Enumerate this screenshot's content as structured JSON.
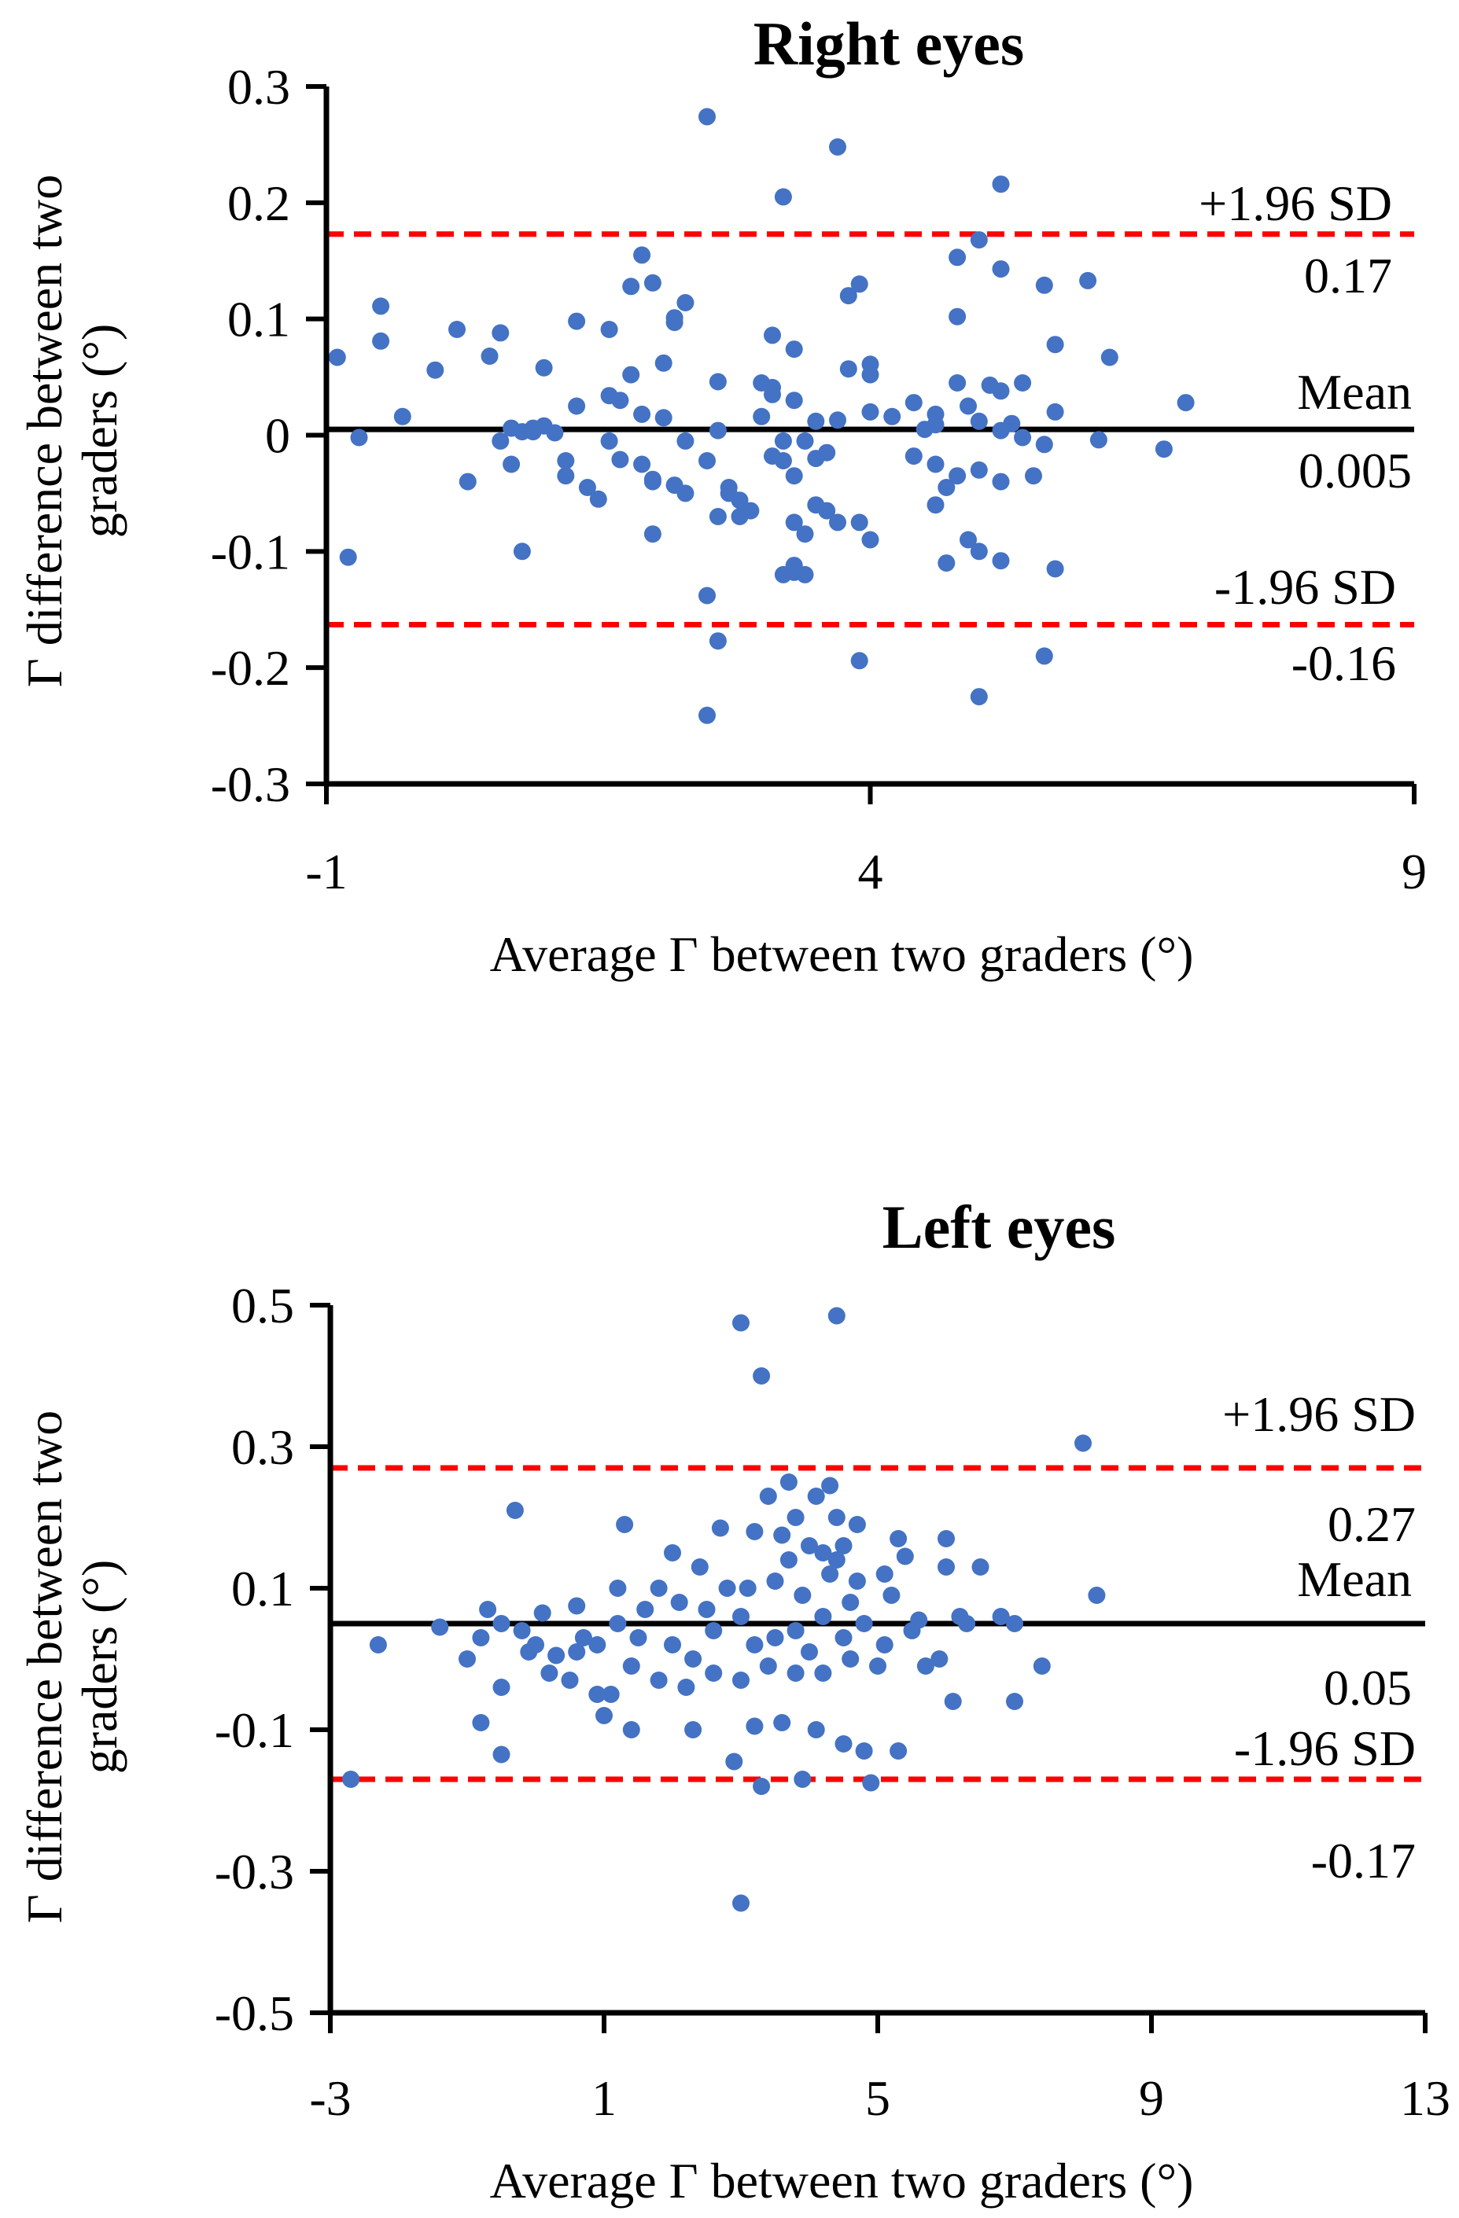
{
  "chart_data": [
    {
      "type": "scatter",
      "title": "Right eyes",
      "xlabel": "Average Γ between two graders (°)",
      "ylabel": "Γ difference between two graders  (°)",
      "xlim": [
        -1,
        9
      ],
      "ylim": [
        -0.3,
        0.3
      ],
      "xticks": [
        -1,
        4,
        9
      ],
      "yticks": [
        -0.3,
        -0.2,
        -0.1,
        0,
        0.1,
        0.2,
        0.3
      ],
      "xtick_labels": [
        "-1",
        "4",
        "9"
      ],
      "ytick_labels": [
        "-0.3",
        "-0.2",
        "-0.1",
        "0",
        "0.1",
        "0.2",
        "0.3"
      ],
      "reference_lines": [
        {
          "name": "upper-limit",
          "label": "+1.96 SD",
          "value_label": "0.17",
          "y": 0.173,
          "style": "dashed",
          "color": "#ff0000"
        },
        {
          "name": "mean",
          "label": "Mean",
          "value_label": "0.005",
          "y": 0.005,
          "style": "solid",
          "color": "#000000"
        },
        {
          "name": "lower-limit",
          "label": "-1.96 SD",
          "value_label": "-0.16",
          "y": -0.163,
          "style": "dashed",
          "color": "#ff0000"
        }
      ],
      "point_color": "#4472c4",
      "points": [
        [
          2.5,
          0.274
        ],
        [
          3.7,
          0.248
        ],
        [
          3.2,
          0.205
        ],
        [
          5.2,
          0.216
        ],
        [
          5.0,
          0.168
        ],
        [
          4.8,
          0.153
        ],
        [
          5.2,
          0.143
        ],
        [
          1.9,
          0.155
        ],
        [
          1.8,
          0.128
        ],
        [
          2.0,
          0.131
        ],
        [
          3.9,
          0.13
        ],
        [
          3.8,
          0.12
        ],
        [
          -0.5,
          0.111
        ],
        [
          2.3,
          0.114
        ],
        [
          5.6,
          0.129
        ],
        [
          6.0,
          0.133
        ],
        [
          -0.5,
          0.081
        ],
        [
          0.2,
          0.091
        ],
        [
          0.6,
          0.088
        ],
        [
          2.2,
          0.101
        ],
        [
          1.3,
          0.098
        ],
        [
          2.2,
          0.097
        ],
        [
          3.1,
          0.086
        ],
        [
          3.3,
          0.074
        ],
        [
          4.8,
          0.102
        ],
        [
          5.7,
          0.078
        ],
        [
          4.0,
          0.061
        ],
        [
          6.2,
          0.067
        ],
        [
          -0.9,
          0.067
        ],
        [
          0.0,
          0.056
        ],
        [
          0.5,
          0.068
        ],
        [
          1.0,
          0.058
        ],
        [
          1.8,
          0.052
        ],
        [
          1.6,
          0.091
        ],
        [
          2.1,
          0.062
        ],
        [
          3.0,
          0.045
        ],
        [
          3.3,
          0.03
        ],
        [
          3.8,
          0.057
        ],
        [
          4.0,
          0.052
        ],
        [
          4.8,
          0.045
        ],
        [
          5.1,
          0.043
        ],
        [
          5.2,
          0.038
        ],
        [
          5.4,
          0.045
        ],
        [
          5.7,
          0.02
        ],
        [
          6.9,
          0.028
        ],
        [
          2.6,
          0.046
        ],
        [
          3.1,
          0.041
        ],
        [
          3.1,
          0.035
        ],
        [
          4.4,
          0.028
        ],
        [
          4.6,
          0.018
        ],
        [
          4.0,
          0.02
        ],
        [
          4.2,
          0.016
        ],
        [
          -0.7,
          -0.002
        ],
        [
          -0.3,
          0.016
        ],
        [
          0.8,
          0.003
        ],
        [
          0.9,
          0.006
        ],
        [
          1.0,
          0.008
        ],
        [
          1.3,
          0.025
        ],
        [
          1.6,
          0.034
        ],
        [
          1.7,
          0.03
        ],
        [
          1.9,
          0.018
        ],
        [
          2.1,
          0.015
        ],
        [
          2.3,
          -0.005
        ],
        [
          2.6,
          0.004
        ],
        [
          3.0,
          0.016
        ],
        [
          3.5,
          0.012
        ],
        [
          3.7,
          0.013
        ],
        [
          4.5,
          0.005
        ],
        [
          4.6,
          0.009
        ],
        [
          5.0,
          0.012
        ],
        [
          5.2,
          0.004
        ],
        [
          5.4,
          -0.002
        ],
        [
          6.7,
          -0.012
        ],
        [
          6.1,
          -0.004
        ],
        [
          5.6,
          -0.008
        ],
        [
          5.3,
          0.01
        ],
        [
          4.9,
          0.025
        ],
        [
          0.6,
          -0.005
        ],
        [
          0.7,
          0.006
        ],
        [
          0.9,
          0.003
        ],
        [
          1.1,
          0.002
        ],
        [
          1.6,
          -0.005
        ],
        [
          1.2,
          -0.022
        ],
        [
          0.7,
          -0.025
        ],
        [
          0.3,
          -0.04
        ],
        [
          1.2,
          -0.035
        ],
        [
          1.4,
          -0.045
        ],
        [
          1.5,
          -0.055
        ],
        [
          1.7,
          -0.021
        ],
        [
          2.0,
          -0.038
        ],
        [
          2.2,
          -0.043
        ],
        [
          2.3,
          -0.05
        ],
        [
          2.5,
          -0.022
        ],
        [
          2.7,
          -0.045
        ],
        [
          2.8,
          -0.056
        ],
        [
          2.9,
          -0.065
        ],
        [
          3.1,
          -0.018
        ],
        [
          3.2,
          -0.022
        ],
        [
          3.3,
          -0.035
        ],
        [
          3.5,
          -0.02
        ],
        [
          3.6,
          -0.015
        ],
        [
          3.4,
          -0.005
        ],
        [
          3.2,
          -0.005
        ],
        [
          3.6,
          -0.065
        ],
        [
          3.7,
          -0.075
        ],
        [
          3.9,
          -0.075
        ],
        [
          4.4,
          -0.018
        ],
        [
          4.6,
          -0.025
        ],
        [
          4.7,
          -0.045
        ],
        [
          4.8,
          -0.035
        ],
        [
          5.0,
          -0.03
        ],
        [
          5.2,
          -0.04
        ],
        [
          5.5,
          -0.035
        ],
        [
          3.4,
          -0.085
        ],
        [
          3.5,
          -0.06
        ],
        [
          3.3,
          -0.075
        ],
        [
          2.8,
          -0.07
        ],
        [
          2.6,
          -0.07
        ],
        [
          2.0,
          -0.085
        ],
        [
          2.0,
          -0.04
        ],
        [
          1.9,
          -0.025
        ],
        [
          2.7,
          -0.05
        ],
        [
          3.3,
          -0.118
        ],
        [
          3.2,
          -0.12
        ],
        [
          3.4,
          -0.12
        ],
        [
          3.3,
          -0.112
        ],
        [
          4.0,
          -0.09
        ],
        [
          4.6,
          -0.06
        ],
        [
          4.9,
          -0.09
        ],
        [
          5.0,
          -0.1
        ],
        [
          5.2,
          -0.108
        ],
        [
          5.7,
          -0.115
        ],
        [
          4.7,
          -0.11
        ],
        [
          0.8,
          -0.1
        ],
        [
          -0.8,
          -0.105
        ],
        [
          2.5,
          -0.138
        ],
        [
          2.6,
          -0.177
        ],
        [
          3.9,
          -0.194
        ],
        [
          5.6,
          -0.19
        ],
        [
          5.0,
          -0.225
        ],
        [
          2.5,
          -0.241
        ]
      ]
    },
    {
      "type": "scatter",
      "title": "Left eyes",
      "xlabel": "Average Γ between two graders (°)",
      "ylabel": "Γ difference between two graders  (°)",
      "xlim": [
        -3,
        13
      ],
      "ylim": [
        -0.5,
        0.5
      ],
      "xticks": [
        -3,
        1,
        5,
        9,
        13
      ],
      "yticks": [
        -0.5,
        -0.3,
        -0.1,
        0.1,
        0.3,
        0.5
      ],
      "xtick_labels": [
        "-3",
        "1",
        "5",
        "9",
        "13"
      ],
      "ytick_labels": [
        "-0.5",
        "-0.3",
        "-0.1",
        "0.1",
        "0.3",
        "0.5"
      ],
      "reference_lines": [
        {
          "name": "upper-limit",
          "label": "+1.96 SD",
          "value_label": "0.27",
          "y": 0.27,
          "style": "dashed",
          "color": "#ff0000"
        },
        {
          "name": "mean",
          "label": "Mean",
          "value_label": "0.05",
          "y": 0.05,
          "style": "solid",
          "color": "#000000"
        },
        {
          "name": "lower-limit",
          "label": "-1.96 SD",
          "value_label": "-0.17",
          "y": -0.17,
          "style": "dashed",
          "color": "#ff0000"
        }
      ],
      "point_color": "#4472c4",
      "points": [
        [
          3.0,
          0.475
        ],
        [
          4.4,
          0.485
        ],
        [
          3.3,
          0.4
        ],
        [
          8.0,
          0.305
        ],
        [
          3.4,
          0.23
        ],
        [
          4.1,
          0.23
        ],
        [
          4.3,
          0.245
        ],
        [
          3.7,
          0.25
        ],
        [
          3.8,
          0.2
        ],
        [
          4.4,
          0.2
        ],
        [
          4.7,
          0.19
        ],
        [
          5.3,
          0.17
        ],
        [
          6.0,
          0.17
        ],
        [
          -0.3,
          0.21
        ],
        [
          1.3,
          0.19
        ],
        [
          2.0,
          0.15
        ],
        [
          2.7,
          0.185
        ],
        [
          3.2,
          0.18
        ],
        [
          3.6,
          0.175
        ],
        [
          4.0,
          0.16
        ],
        [
          4.2,
          0.15
        ],
        [
          4.5,
          0.16
        ],
        [
          5.4,
          0.145
        ],
        [
          6.5,
          0.13
        ],
        [
          6.0,
          0.13
        ],
        [
          5.1,
          0.12
        ],
        [
          4.3,
          0.12
        ],
        [
          3.5,
          0.11
        ],
        [
          2.8,
          0.1
        ],
        [
          2.4,
          0.13
        ],
        [
          1.8,
          0.1
        ],
        [
          1.2,
          0.1
        ],
        [
          0.6,
          0.075
        ],
        [
          0.1,
          0.065
        ],
        [
          -0.7,
          0.07
        ],
        [
          -1.4,
          0.045
        ],
        [
          -2.3,
          0.02
        ],
        [
          -0.8,
          0.03
        ],
        [
          -0.5,
          0.05
        ],
        [
          -0.2,
          0.04
        ],
        [
          0.0,
          0.02
        ],
        [
          0.3,
          0.005
        ],
        [
          0.6,
          0.01
        ],
        [
          0.9,
          0.02
        ],
        [
          1.2,
          0.05
        ],
        [
          1.5,
          0.03
        ],
        [
          2.0,
          0.02
        ],
        [
          2.3,
          0.0
        ],
        [
          2.6,
          0.04
        ],
        [
          3.0,
          0.06
        ],
        [
          3.2,
          0.02
        ],
        [
          3.5,
          0.03
        ],
        [
          3.8,
          0.04
        ],
        [
          4.0,
          0.01
        ],
        [
          4.2,
          0.06
        ],
        [
          4.5,
          0.03
        ],
        [
          4.8,
          0.05
        ],
        [
          5.1,
          0.02
        ],
        [
          5.5,
          0.04
        ],
        [
          5.9,
          0.0
        ],
        [
          6.3,
          0.05
        ],
        [
          7.4,
          -0.01
        ],
        [
          8.2,
          0.09
        ],
        [
          7.0,
          0.05
        ],
        [
          6.8,
          0.06
        ],
        [
          6.2,
          0.06
        ],
        [
          5.7,
          -0.01
        ],
        [
          5.0,
          -0.01
        ],
        [
          4.6,
          0.0
        ],
        [
          4.2,
          -0.02
        ],
        [
          3.8,
          -0.02
        ],
        [
          3.4,
          -0.01
        ],
        [
          3.0,
          -0.03
        ],
        [
          2.6,
          -0.02
        ],
        [
          2.2,
          -0.04
        ],
        [
          1.8,
          -0.03
        ],
        [
          1.4,
          -0.01
        ],
        [
          1.1,
          -0.05
        ],
        [
          0.5,
          -0.03
        ],
        [
          0.2,
          -0.02
        ],
        [
          -0.5,
          -0.04
        ],
        [
          -1.0,
          0.0
        ],
        [
          -0.8,
          -0.09
        ],
        [
          -0.5,
          -0.135
        ],
        [
          -2.7,
          -0.17
        ],
        [
          0.9,
          -0.05
        ],
        [
          1.0,
          -0.08
        ],
        [
          1.4,
          -0.1
        ],
        [
          2.3,
          -0.1
        ],
        [
          2.9,
          -0.145
        ],
        [
          3.2,
          -0.095
        ],
        [
          3.6,
          -0.09
        ],
        [
          3.9,
          -0.17
        ],
        [
          4.1,
          -0.1
        ],
        [
          4.5,
          -0.12
        ],
        [
          4.8,
          -0.13
        ],
        [
          5.3,
          -0.13
        ],
        [
          6.1,
          -0.06
        ],
        [
          7.0,
          -0.06
        ],
        [
          3.3,
          -0.18
        ],
        [
          4.9,
          -0.175
        ],
        [
          3.0,
          -0.345
        ],
        [
          5.6,
          0.055
        ],
        [
          4.7,
          0.11
        ],
        [
          3.9,
          0.09
        ],
        [
          3.1,
          0.1
        ],
        [
          2.5,
          0.07
        ],
        [
          2.1,
          0.08
        ],
        [
          1.6,
          0.07
        ],
        [
          0.7,
          0.03
        ],
        [
          -0.1,
          0.01
        ],
        [
          3.7,
          0.14
        ],
        [
          4.4,
          0.14
        ],
        [
          5.2,
          0.09
        ],
        [
          4.6,
          0.08
        ]
      ]
    }
  ]
}
